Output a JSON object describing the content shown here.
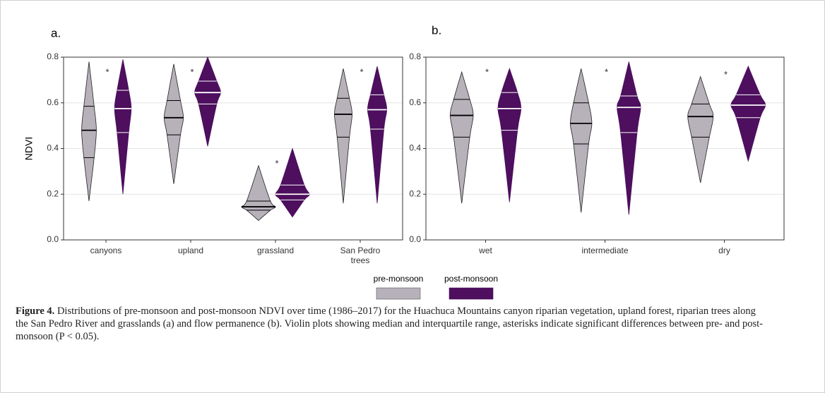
{
  "chart_data": [
    {
      "type": "violin",
      "panel_label": "a.",
      "ylabel": "NDVI",
      "categories": [
        "canyons",
        "upland",
        "grassland",
        "San Pedro\ntrees"
      ],
      "annotations": [
        "*",
        "*",
        "*",
        "*"
      ],
      "ylim": [
        0,
        0.8
      ],
      "yticks": [
        {
          "value": 0,
          "label": "0.0"
        },
        0.2,
        0.4,
        0.6,
        0.8
      ],
      "grid": true,
      "series": [
        {
          "name": "pre-monsoon",
          "color": "#b7b1ba",
          "line_color": "#000000",
          "min": [
            0.17,
            0.245,
            0.085,
            0.16
          ],
          "q1": [
            0.36,
            0.46,
            0.13,
            0.45
          ],
          "median": [
            0.48,
            0.535,
            0.145,
            0.55
          ],
          "q3": [
            0.585,
            0.61,
            0.17,
            0.62
          ],
          "max": [
            0.78,
            0.77,
            0.325,
            0.75
          ]
        },
        {
          "name": "post-monsoon",
          "color": "#4d0f5e",
          "line_color": "#ffffff",
          "min": [
            0.2,
            0.41,
            0.1,
            0.16
          ],
          "q1": [
            0.47,
            0.595,
            0.175,
            0.485
          ],
          "median": [
            0.575,
            0.645,
            0.2,
            0.57
          ],
          "q3": [
            0.655,
            0.695,
            0.24,
            0.635
          ],
          "max": [
            0.79,
            0.8,
            0.4,
            0.76
          ]
        }
      ]
    },
    {
      "type": "violin",
      "panel_label": "b.",
      "categories": [
        "wet",
        "intermediate",
        "dry"
      ],
      "annotations": [
        "*",
        "*",
        "*"
      ],
      "ylim": [
        0,
        0.8
      ],
      "yticks": [
        {
          "value": 0,
          "label": "0.0"
        },
        0.2,
        0.4,
        0.6,
        0.8
      ],
      "grid": true,
      "series": [
        {
          "color": "#b7b1ba",
          "line_color": "#000000",
          "min": [
            0.16,
            0.12,
            0.25
          ],
          "q1": [
            0.45,
            0.42,
            0.45
          ],
          "median": [
            0.545,
            0.51,
            0.54
          ],
          "q3": [
            0.615,
            0.6,
            0.595
          ],
          "max": [
            0.735,
            0.75,
            0.715
          ]
        },
        {
          "color": "#4d0f5e",
          "line_color": "#ffffff",
          "min": [
            0.165,
            0.11,
            0.345
          ],
          "q1": [
            0.48,
            0.47,
            0.535
          ],
          "median": [
            0.575,
            0.58,
            0.59
          ],
          "q3": [
            0.645,
            0.63,
            0.635
          ],
          "max": [
            0.75,
            0.78,
            0.76
          ]
        }
      ]
    }
  ],
  "caption": {
    "label": "Figure 4.",
    "text": "Distributions of pre-monsoon and post-monsoon NDVI over time (1986–2017) for the Huachuca Mountains canyon riparian vegetation, upland forest, riparian trees along the San Pedro River and grasslands (a) and flow permanence (b). Violin plots showing median and interquartile range, asterisks indicate significant differences between pre- and post-monsoon (P < 0.05)."
  }
}
